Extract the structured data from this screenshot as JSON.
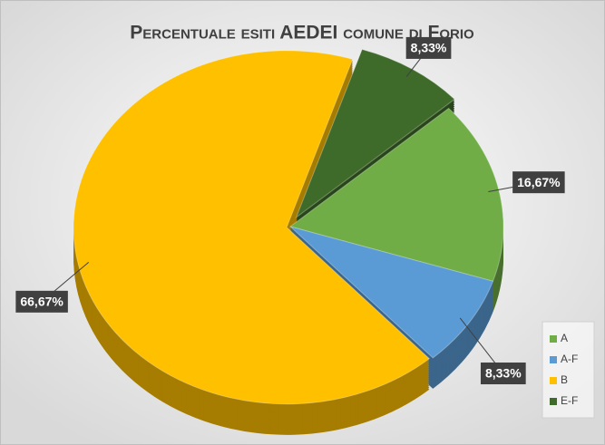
{
  "chart_data": {
    "type": "pie",
    "title": "Percentuale esiti AEDEI comune di Forio",
    "categories": [
      "A",
      "A-F",
      "B",
      "E-F"
    ],
    "values": [
      16.67,
      8.33,
      66.67,
      8.33
    ],
    "value_labels": [
      "16,67%",
      "8,33%",
      "66,67%",
      "8,33%"
    ],
    "colors": [
      "#70ad47",
      "#5b9bd5",
      "#ffc000",
      "#3f6b2a"
    ],
    "legend": "bottom-right"
  }
}
